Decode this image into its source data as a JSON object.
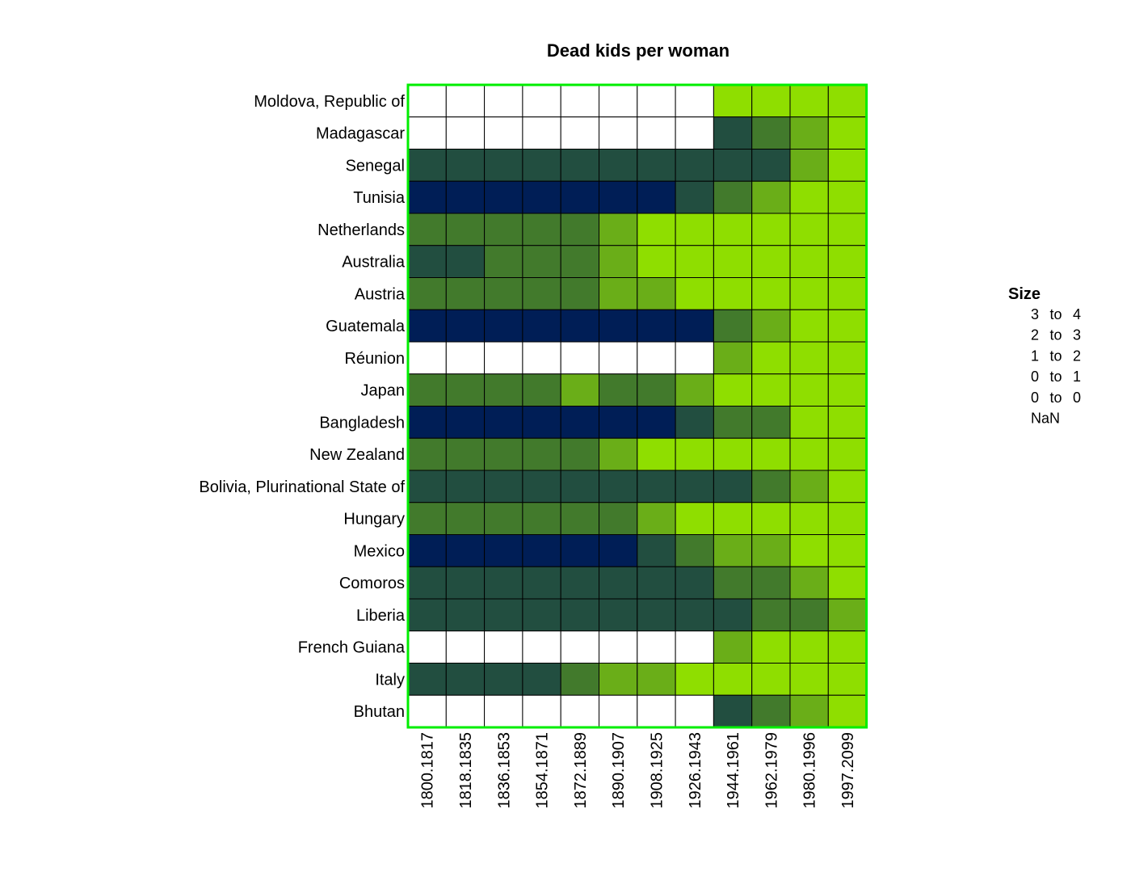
{
  "chart_data": {
    "type": "heatmap",
    "title": "Dead kids per woman",
    "xlabel": "",
    "ylabel": "",
    "rows": [
      "Moldova, Republic of",
      "Madagascar",
      "Senegal",
      "Tunisia",
      "Netherlands",
      "Australia",
      "Austria",
      "Guatemala",
      "Réunion",
      "Japan",
      "Bangladesh",
      "New Zealand",
      "Bolivia, Plurinational State of",
      "Hungary",
      "Mexico",
      "Comoros",
      "Liberia",
      "French Guiana",
      "Italy",
      "Bhutan"
    ],
    "columns": [
      "1800.1817",
      "1818.1835",
      "1836.1853",
      "1854.1871",
      "1872.1889",
      "1890.1907",
      "1908.1925",
      "1926.1943",
      "1944.1961",
      "1962.1979",
      "1980.1996",
      "1997.2099"
    ],
    "category_legend": "0 = NaN, 1 = 0 to 0, 2 = 0 to 1, 3 = 1 to 2, 4 = 2 to 3, 5 = 3 to 4",
    "cells": [
      [
        0,
        0,
        0,
        0,
        0,
        0,
        0,
        0,
        1,
        1,
        1,
        1
      ],
      [
        0,
        0,
        0,
        0,
        0,
        0,
        0,
        0,
        4,
        3,
        2,
        1
      ],
      [
        4,
        4,
        4,
        4,
        4,
        4,
        4,
        4,
        4,
        4,
        2,
        1
      ],
      [
        5,
        5,
        5,
        5,
        5,
        5,
        5,
        4,
        3,
        2,
        1,
        1
      ],
      [
        3,
        3,
        3,
        3,
        3,
        2,
        1,
        1,
        1,
        1,
        1,
        1
      ],
      [
        4,
        4,
        3,
        3,
        3,
        2,
        1,
        1,
        1,
        1,
        1,
        1
      ],
      [
        3,
        3,
        3,
        3,
        3,
        2,
        2,
        1,
        1,
        1,
        1,
        1
      ],
      [
        5,
        5,
        5,
        5,
        5,
        5,
        5,
        5,
        3,
        2,
        1,
        1
      ],
      [
        0,
        0,
        0,
        0,
        0,
        0,
        0,
        0,
        2,
        1,
        1,
        1
      ],
      [
        3,
        3,
        3,
        3,
        2,
        3,
        3,
        2,
        1,
        1,
        1,
        1
      ],
      [
        5,
        5,
        5,
        5,
        5,
        5,
        5,
        4,
        3,
        3,
        1,
        1
      ],
      [
        3,
        3,
        3,
        3,
        3,
        2,
        1,
        1,
        1,
        1,
        1,
        1
      ],
      [
        4,
        4,
        4,
        4,
        4,
        4,
        4,
        4,
        4,
        3,
        2,
        1
      ],
      [
        3,
        3,
        3,
        3,
        3,
        3,
        2,
        1,
        1,
        1,
        1,
        1
      ],
      [
        5,
        5,
        5,
        5,
        5,
        5,
        4,
        3,
        2,
        2,
        1,
        1
      ],
      [
        4,
        4,
        4,
        4,
        4,
        4,
        4,
        4,
        3,
        3,
        2,
        1
      ],
      [
        4,
        4,
        4,
        4,
        4,
        4,
        4,
        4,
        4,
        3,
        3,
        2
      ],
      [
        0,
        0,
        0,
        0,
        0,
        0,
        0,
        0,
        2,
        1,
        1,
        1
      ],
      [
        4,
        4,
        4,
        4,
        3,
        2,
        2,
        1,
        1,
        1,
        1,
        1
      ],
      [
        0,
        0,
        0,
        0,
        0,
        0,
        0,
        0,
        4,
        3,
        2,
        1
      ]
    ],
    "legend": {
      "title": "Size",
      "entries": [
        {
          "low": "3",
          "sep": "to",
          "high": "4",
          "level": 5
        },
        {
          "low": "2",
          "sep": "to",
          "high": "3",
          "level": 4
        },
        {
          "low": "1",
          "sep": "to",
          "high": "2",
          "level": 3
        },
        {
          "low": "0",
          "sep": "to",
          "high": "1",
          "level": 2
        },
        {
          "low": "0",
          "sep": "to",
          "high": "0",
          "level": 1
        },
        {
          "low": "NaN",
          "sep": "",
          "high": "",
          "level": 0
        }
      ],
      "placement": "right"
    },
    "colors": {
      "level_0": "#ffffff",
      "level_1": "#8fde00",
      "level_2": "#6aae18",
      "level_3": "#427a2c",
      "level_4": "#224e40",
      "level_5": "#001e56",
      "frame": "#00ee00",
      "cell_border": "#000000"
    },
    "grid": true
  }
}
